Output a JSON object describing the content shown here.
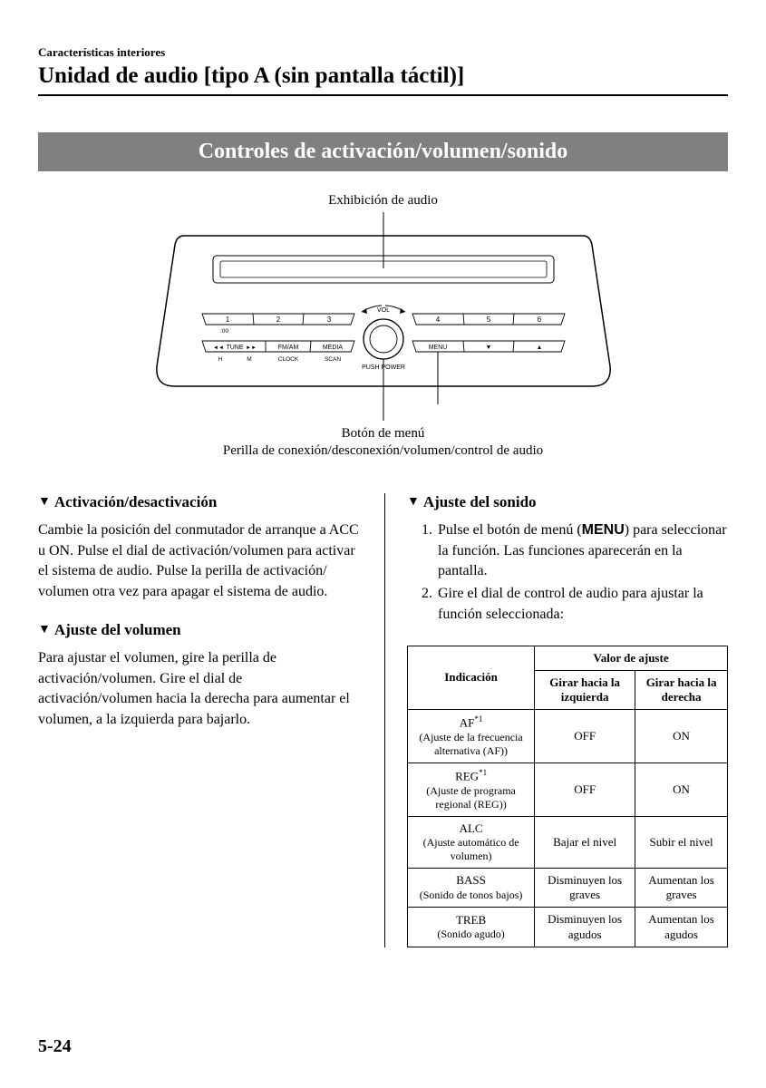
{
  "header": {
    "breadcrumb": "Características interiores",
    "title": "Unidad de audio [tipo A (sin pantalla táctil)]"
  },
  "banner": "Controles de activación/volumen/sonido",
  "diagram": {
    "top_label": "Exhibición de audio",
    "bottom_label_1": "Botón de menú",
    "bottom_label_2": "Perilla de conexión/desconexión/volumen/control de audio",
    "vol_label": "VOL",
    "push_power": "PUSH POWER",
    "preset_left": [
      "1",
      "2",
      "3"
    ],
    "preset_right": [
      "4",
      "5",
      "6"
    ],
    "under_1": ":00",
    "row2_left": [
      "TUNE",
      "FM/AM",
      "MEDIA"
    ],
    "row2_right_menu": "MENU",
    "under_row2_left": [
      "H",
      "M",
      "CLOCK",
      "SCAN"
    ],
    "tune_left_icon": "◄◄",
    "tune_right_icon": "►►"
  },
  "left": {
    "h1": "Activación/desactivación",
    "p1": "Cambie la posición del conmutador de arranque a ACC u ON. Pulse el dial de activación/volumen para activar el sistema de audio. Pulse la perilla de activación/ volumen otra vez para apagar el sistema de audio.",
    "h2": "Ajuste del volumen",
    "p2": "Para ajustar el volumen, gire la perilla de activación/volumen. Gire el dial de activación/volumen hacia la derecha para aumentar el volumen, a la izquierda para bajarlo."
  },
  "right": {
    "h1": "Ajuste del sonido",
    "li1_a": "Pulse el botón de menú (",
    "li1_b": "MENU",
    "li1_c": ") para seleccionar la función. Las funciones aparecerán en la pantalla.",
    "li2": "Gire el dial de control de audio para ajustar la función seleccionada:"
  },
  "table": {
    "header_span": "Valor de ajuste",
    "header_ind": "Indicación",
    "header_left": "Girar hacia la izquierda",
    "header_right": "Girar hacia la derecha",
    "rows": [
      {
        "main": "AF",
        "sup": "*1",
        "sub": "(Ajuste de la frecuencia alternativa (AF))",
        "l": "OFF",
        "r": "ON"
      },
      {
        "main": "REG",
        "sup": "*1",
        "sub": "(Ajuste de programa regional (REG))",
        "l": "OFF",
        "r": "ON"
      },
      {
        "main": "ALC",
        "sup": "",
        "sub": "(Ajuste automático de volumen)",
        "l": "Bajar el nivel",
        "r": "Subir el nivel"
      },
      {
        "main": "BASS",
        "sup": "",
        "sub": "(Sonido de tonos bajos)",
        "l": "Disminuyen los graves",
        "r": "Aumentan los graves"
      },
      {
        "main": "TREB",
        "sup": "",
        "sub": "(Sonido agudo)",
        "l": "Disminuyen los agudos",
        "r": "Aumentan los agudos"
      }
    ]
  },
  "page_number": "5-24",
  "colors": {
    "banner_bg": "#808080",
    "banner_fg": "#ffffff",
    "line": "#000000"
  }
}
